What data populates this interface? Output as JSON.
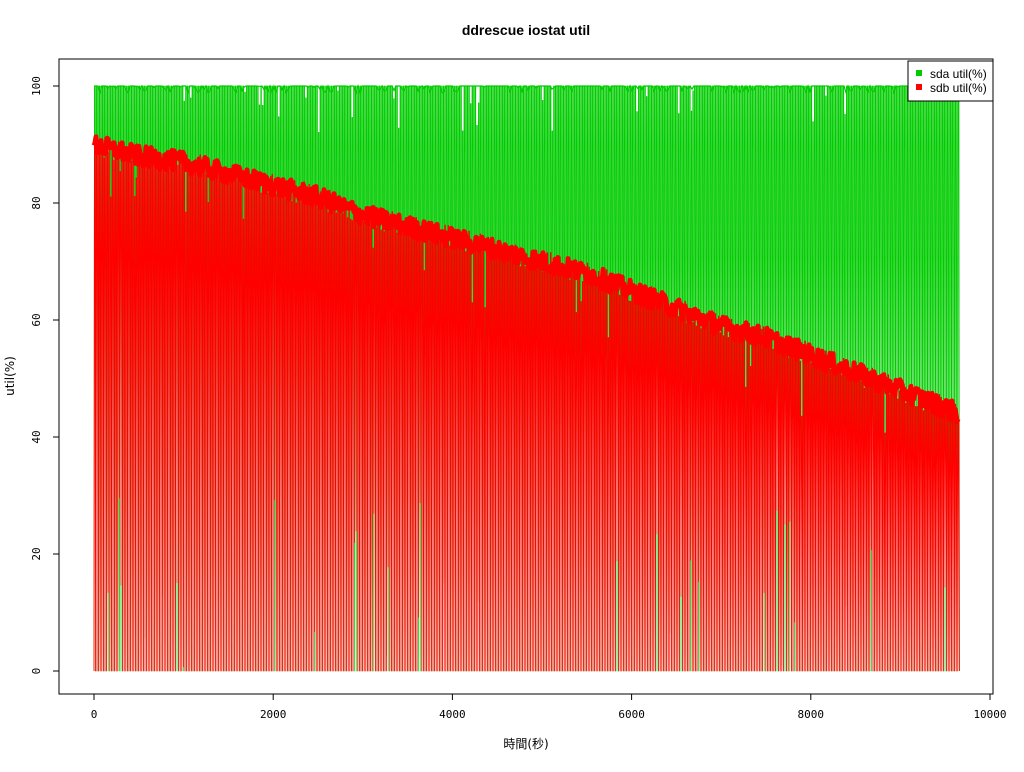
{
  "chart_data": {
    "type": "line",
    "title": "ddrescue iostat util",
    "xlabel": "時間(秒)",
    "ylabel": "util(%)",
    "xlim": [
      0,
      10000
    ],
    "ylim": [
      0,
      100
    ],
    "x_ticks": [
      0,
      2000,
      4000,
      6000,
      8000,
      10000
    ],
    "y_ticks": [
      0,
      20,
      40,
      60,
      80,
      100
    ],
    "x_tick_labels": [
      "0",
      "2000",
      "4000",
      "6000",
      "8000",
      "10000"
    ],
    "y_tick_labels": [
      "0",
      "20",
      "40",
      "60",
      "80",
      "100"
    ],
    "grid": false,
    "legend_position": "top-right",
    "description_of_pattern": "",
    "series": [
      {
        "name": "sda util(%)",
        "color": "#00cc00",
        "style": "oscillating",
        "x": [
          0,
          1000,
          2000,
          3000,
          4000,
          5000,
          6000,
          7000,
          8000,
          9000,
          9650
        ],
        "upper_envelope": [
          100,
          100,
          100,
          100,
          100,
          100,
          100,
          100,
          100,
          100,
          100
        ],
        "lower_envelope": [
          0,
          0,
          0,
          0,
          0,
          0,
          0,
          0,
          0,
          0,
          0
        ]
      },
      {
        "name": "sdb util(%)",
        "color": "#ff0000",
        "style": "oscillating",
        "x": [
          0,
          500,
          1000,
          1500,
          2000,
          2500,
          3000,
          3500,
          4000,
          4500,
          5000,
          5500,
          6000,
          6500,
          7000,
          7500,
          8000,
          8500,
          9000,
          9500,
          9650
        ],
        "upper_envelope": [
          90,
          88,
          87,
          85,
          83,
          81,
          78,
          76,
          74,
          72,
          70,
          68,
          65,
          62,
          59,
          57,
          54,
          51,
          48,
          45,
          44
        ],
        "lower_envelope": [
          0,
          0,
          0,
          0,
          0,
          0,
          0,
          0,
          0,
          0,
          0,
          0,
          0,
          0,
          0,
          0,
          0,
          0,
          0,
          0,
          0
        ]
      }
    ]
  },
  "legend": {
    "items": [
      {
        "label": "sda util(%)",
        "color": "#00cc00"
      },
      {
        "label": "sdb util(%)",
        "color": "#ff0000"
      }
    ]
  }
}
